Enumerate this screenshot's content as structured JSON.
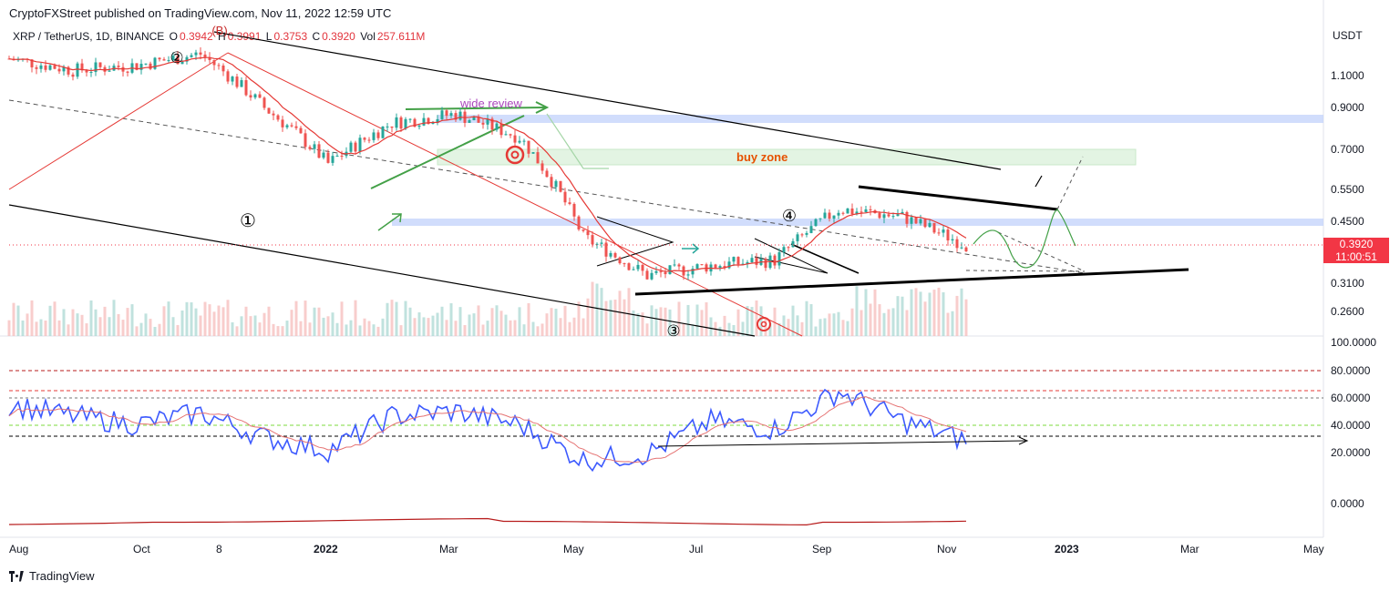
{
  "header": {
    "publisher_line": "CryptoFXStreet published on TradingView.com, Nov 11, 2022 12:59 UTC"
  },
  "legend": {
    "symbol": "XRP / TetherUS, 1D, BINANCE",
    "open_label": "O",
    "open": "0.3942",
    "high_label": "H",
    "high": "0.3991",
    "low_label": "L",
    "low": "0.3753",
    "close_label": "C",
    "close": "0.3920",
    "vol_label": "Vol",
    "volume": "257.611M"
  },
  "price_axis": {
    "currency": "USDT",
    "labels": [
      "1.1000",
      "0.9000",
      "0.7000",
      "0.5500",
      "0.4500",
      "0.3100",
      "0.2600"
    ]
  },
  "price_tag": {
    "price": "0.3920",
    "countdown": "11:00:51"
  },
  "rsi_axis": {
    "labels": [
      "100.0000",
      "80.0000",
      "60.0000",
      "40.0000",
      "20.0000",
      "0.0000"
    ]
  },
  "time_axis": {
    "labels": [
      "Aug",
      "Oct",
      "8",
      "2022",
      "Mar",
      "May",
      "Jul",
      "Sep",
      "Nov",
      "2023",
      "Mar",
      "May"
    ]
  },
  "annotations": {
    "wave_1": "①",
    "wave_2": "②",
    "wave_3": "③",
    "wave_4": "④",
    "wave_b": "(B)",
    "wide_review": "wide review",
    "buy_zone": "buy zone"
  },
  "footer": {
    "brand": "TradingView"
  },
  "colors": {
    "candle_up": "#26a69a",
    "candle_down": "#ef5350",
    "sma": "#e53935",
    "rsi": "#3d5afe",
    "rsi_ma": "#e57373",
    "annotation_green": "#4caf50",
    "band_blue": "#c5d5fb",
    "buy_zone_fill": "#e3f4e3",
    "buy_zone_text": "#e65100",
    "wide_review_text": "#ab47bc",
    "price_tag": "#f23645"
  },
  "chart_data": [
    {
      "type": "candlestick",
      "title": "XRP / TetherUS, 1D, BINANCE",
      "scale": "log",
      "ylim": [
        0.235,
        1.35
      ],
      "y_ticks": [
        1.1,
        0.9,
        0.7,
        0.55,
        0.45,
        0.31,
        0.26
      ],
      "x_ticks": [
        "Aug",
        "Oct",
        "8",
        "2022",
        "Mar",
        "May",
        "Jul",
        "Sep",
        "Nov",
        "2023",
        "Mar",
        "May"
      ],
      "x": [
        "2021-08",
        "2021-09",
        "2021-10",
        "2021-11",
        "2021-12",
        "2022-01",
        "2022-02",
        "2022-03",
        "2022-04",
        "2022-05",
        "2022-06",
        "2022-07",
        "2022-08",
        "2022-09",
        "2022-10",
        "2022-11"
      ],
      "close": [
        1.12,
        1.05,
        1.08,
        1.15,
        0.85,
        0.62,
        0.78,
        0.82,
        0.72,
        0.41,
        0.33,
        0.35,
        0.36,
        0.48,
        0.46,
        0.392
      ],
      "last_close": 0.392,
      "zones": [
        {
          "name": "buy zone",
          "range": [
            0.64,
            0.7
          ]
        },
        {
          "range": [
            0.86,
            0.9
          ]
        },
        {
          "range": [
            0.44,
            0.455
          ]
        }
      ],
      "grid": false
    },
    {
      "type": "line",
      "y_ticks": [
        100,
        80,
        60,
        40,
        20,
        0
      ],
      "ylim": [
        0,
        100
      ],
      "reference_levels": [
        80,
        65,
        60,
        40,
        32
      ],
      "x": [
        "2021-08",
        "2021-09",
        "2021-10",
        "2021-11",
        "2021-12",
        "2022-01",
        "2022-02",
        "2022-03",
        "2022-04",
        "2022-05",
        "2022-06",
        "2022-07",
        "2022-08",
        "2022-09",
        "2022-10",
        "2022-11"
      ],
      "series": [
        {
          "values": [
            62,
            55,
            50,
            57,
            42,
            34,
            55,
            58,
            50,
            28,
            32,
            52,
            47,
            70,
            52,
            40
          ]
        }
      ]
    }
  ]
}
